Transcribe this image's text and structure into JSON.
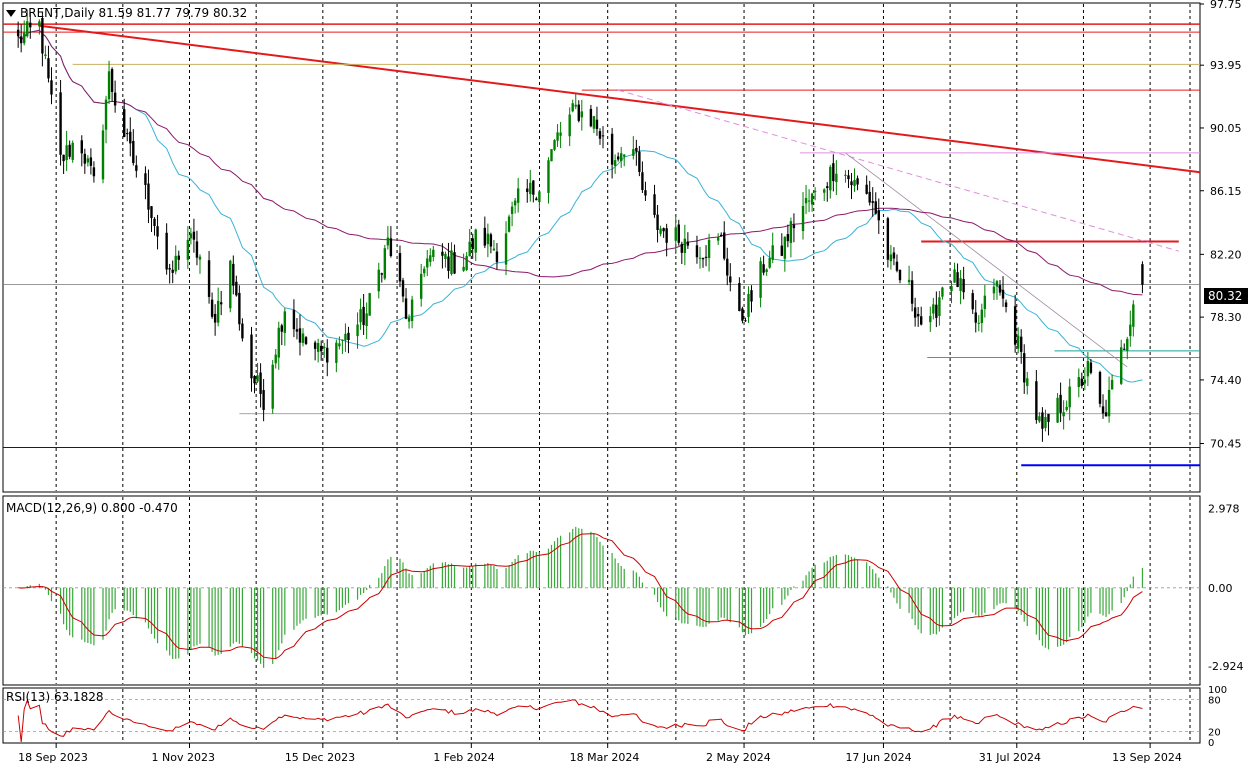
{
  "header": {
    "symbol_line": "BRENT,Daily  81.59 81.77 79.79 80.32",
    "macd_label": "MACD(12,26,9) 0.800 -0.470",
    "rsi_label": "RSI(13) 63.1828"
  },
  "chart_data": [
    {
      "type": "candlestick",
      "title": "BRENT,Daily",
      "ohlc_last": {
        "open": 81.59,
        "high": 81.77,
        "low": 79.79,
        "close": 80.32
      },
      "ylim": [
        67.5,
        97.75
      ],
      "y_ticks": [
        "97.75",
        "93.95",
        "90.05",
        "86.15",
        "82.20",
        "78.30",
        "74.40",
        "70.45"
      ],
      "current_price": "80.32",
      "x_labels": [
        "18 Sep 2023",
        "1 Nov 2023",
        "15 Dec 2023",
        "1 Feb 2024",
        "18 Mar 2024",
        "2 May 2024",
        "17 Jun 2024",
        "31 Jul 2024",
        "13 Sep 2024"
      ],
      "x_range_days": [
        -5,
        390
      ],
      "anchors": [
        {
          "d": 0,
          "p": 95.5
        },
        {
          "d": 7,
          "p": 96.4
        },
        {
          "d": 14,
          "p": 88.0
        },
        {
          "d": 20,
          "p": 89.5
        },
        {
          "d": 25,
          "p": 86.5
        },
        {
          "d": 30,
          "p": 93.2
        },
        {
          "d": 36,
          "p": 89.0
        },
        {
          "d": 44,
          "p": 85.0
        },
        {
          "d": 50,
          "p": 80.5
        },
        {
          "d": 55,
          "p": 83.5
        },
        {
          "d": 60,
          "p": 82.0
        },
        {
          "d": 64,
          "p": 78.0
        },
        {
          "d": 70,
          "p": 81.5
        },
        {
          "d": 76,
          "p": 75.0
        },
        {
          "d": 81,
          "p": 73.3
        },
        {
          "d": 88,
          "p": 79.0
        },
        {
          "d": 94,
          "p": 76.8
        },
        {
          "d": 100,
          "p": 76.0
        },
        {
          "d": 108,
          "p": 77.0
        },
        {
          "d": 115,
          "p": 78.5
        },
        {
          "d": 122,
          "p": 83.0
        },
        {
          "d": 129,
          "p": 77.8
        },
        {
          "d": 134,
          "p": 81.8
        },
        {
          "d": 140,
          "p": 82.0
        },
        {
          "d": 146,
          "p": 81.5
        },
        {
          "d": 152,
          "p": 83.5
        },
        {
          "d": 158,
          "p": 82.5
        },
        {
          "d": 165,
          "p": 85.5
        },
        {
          "d": 172,
          "p": 86.5
        },
        {
          "d": 178,
          "p": 89.5
        },
        {
          "d": 184,
          "p": 91.2
        },
        {
          "d": 190,
          "p": 90.5
        },
        {
          "d": 196,
          "p": 88.0
        },
        {
          "d": 202,
          "p": 89.5
        },
        {
          "d": 208,
          "p": 84.5
        },
        {
          "d": 214,
          "p": 83.5
        },
        {
          "d": 220,
          "p": 83.0
        },
        {
          "d": 226,
          "p": 82.5
        },
        {
          "d": 232,
          "p": 83.0
        },
        {
          "d": 238,
          "p": 78.0
        },
        {
          "d": 242,
          "p": 79.5
        },
        {
          "d": 246,
          "p": 81.5
        },
        {
          "d": 252,
          "p": 82.5
        },
        {
          "d": 258,
          "p": 85.0
        },
        {
          "d": 264,
          "p": 86.0
        },
        {
          "d": 270,
          "p": 87.8
        },
        {
          "d": 276,
          "p": 86.5
        },
        {
          "d": 282,
          "p": 85.5
        },
        {
          "d": 288,
          "p": 81.5
        },
        {
          "d": 294,
          "p": 80.0
        },
        {
          "d": 300,
          "p": 77.0
        },
        {
          "d": 306,
          "p": 81.0
        },
        {
          "d": 310,
          "p": 80.5
        },
        {
          "d": 316,
          "p": 77.5
        },
        {
          "d": 322,
          "p": 80.5
        },
        {
          "d": 328,
          "p": 78.0
        },
        {
          "d": 334,
          "p": 73.5
        },
        {
          "d": 338,
          "p": 71.0
        },
        {
          "d": 342,
          "p": 72.5
        },
        {
          "d": 348,
          "p": 73.5
        },
        {
          "d": 353,
          "p": 75.0
        },
        {
          "d": 358,
          "p": 72.0
        },
        {
          "d": 362,
          "p": 74.5
        },
        {
          "d": 366,
          "p": 77.5
        },
        {
          "d": 370,
          "p": 81.5
        },
        {
          "d": 371,
          "p": 80.3
        }
      ],
      "ma_fast_color": "#3bb2d6",
      "ma_slow_color": "#8b1a6b",
      "bull_color": "#008000",
      "bear_color": "#000000",
      "trend_line_color": "#e31a1c",
      "support_color": "#0000ff",
      "trend_lines": [
        {
          "from_day": 7,
          "from_price": 96.4,
          "to_day": 390,
          "to_price": 87.3,
          "color": "#e31a1c",
          "width": 2
        },
        {
          "from_day": -5,
          "from_price": 96.5,
          "to_day": 390,
          "to_price": 96.5,
          "color": "#e31a1c",
          "width": 1.5
        },
        {
          "from_day": -5,
          "from_price": 96.0,
          "to_day": 390,
          "to_price": 96.0,
          "color": "#e31a1c",
          "width": 1
        },
        {
          "from_day": 186,
          "from_price": 92.4,
          "to_day": 390,
          "to_price": 92.4,
          "color": "#e31a1c",
          "width": 1
        },
        {
          "from_day": 298,
          "from_price": 83.0,
          "to_day": 383,
          "to_price": 83.0,
          "color": "#e31a1c",
          "width": 2
        },
        {
          "from_day": 258,
          "from_price": 88.5,
          "to_day": 390,
          "to_price": 88.5,
          "color": "#e08fe0",
          "width": 1
        },
        {
          "from_day": 18,
          "from_price": 94.0,
          "to_day": 390,
          "to_price": 94.0,
          "color": "#c8b060",
          "width": 1
        },
        {
          "from_day": 73,
          "from_price": 72.3,
          "to_day": 390,
          "to_price": 72.3,
          "color": "#888888",
          "width": 0.8
        },
        {
          "from_day": 300,
          "from_price": 75.8,
          "to_day": 390,
          "to_price": 75.8,
          "color": "#555555",
          "width": 0.8
        },
        {
          "from_day": 342,
          "from_price": 76.2,
          "to_day": 390,
          "to_price": 76.2,
          "color": "#1aa39a",
          "width": 1
        },
        {
          "from_day": -5,
          "from_price": 70.2,
          "to_day": 390,
          "to_price": 70.2,
          "color": "#0000ff",
          "width": 1
        },
        {
          "from_day": 331,
          "from_price": 69.1,
          "to_day": 390,
          "to_price": 69.1,
          "color": "#0000ff",
          "width": 2
        },
        {
          "from_day": 198,
          "from_price": 92.4,
          "to_day": 383,
          "to_price": 82.4,
          "color": "#e08fe0",
          "width": 1,
          "dash": true
        },
        {
          "from_day": 273,
          "from_price": 88.5,
          "to_day": 366,
          "to_price": 75.2,
          "color": "#a08aa0",
          "width": 0.8
        }
      ]
    },
    {
      "type": "bar",
      "title": "MACD(12,26,9)",
      "values_last": {
        "macd": 0.8,
        "signal": -0.47
      },
      "ylim": [
        -3.6,
        3.4
      ],
      "y_ticks": [
        "2.978",
        "0.00",
        "-2.924"
      ],
      "hist_color": "#3aa83a",
      "signal_color": "#cc0000"
    },
    {
      "type": "line",
      "title": "RSI(13)",
      "value_last": 63.1828,
      "ylim": [
        0,
        100
      ],
      "levels": [
        80,
        20
      ],
      "y_ticks": [
        "100",
        "80",
        "20",
        "0"
      ],
      "line_color": "#cc0000"
    }
  ]
}
